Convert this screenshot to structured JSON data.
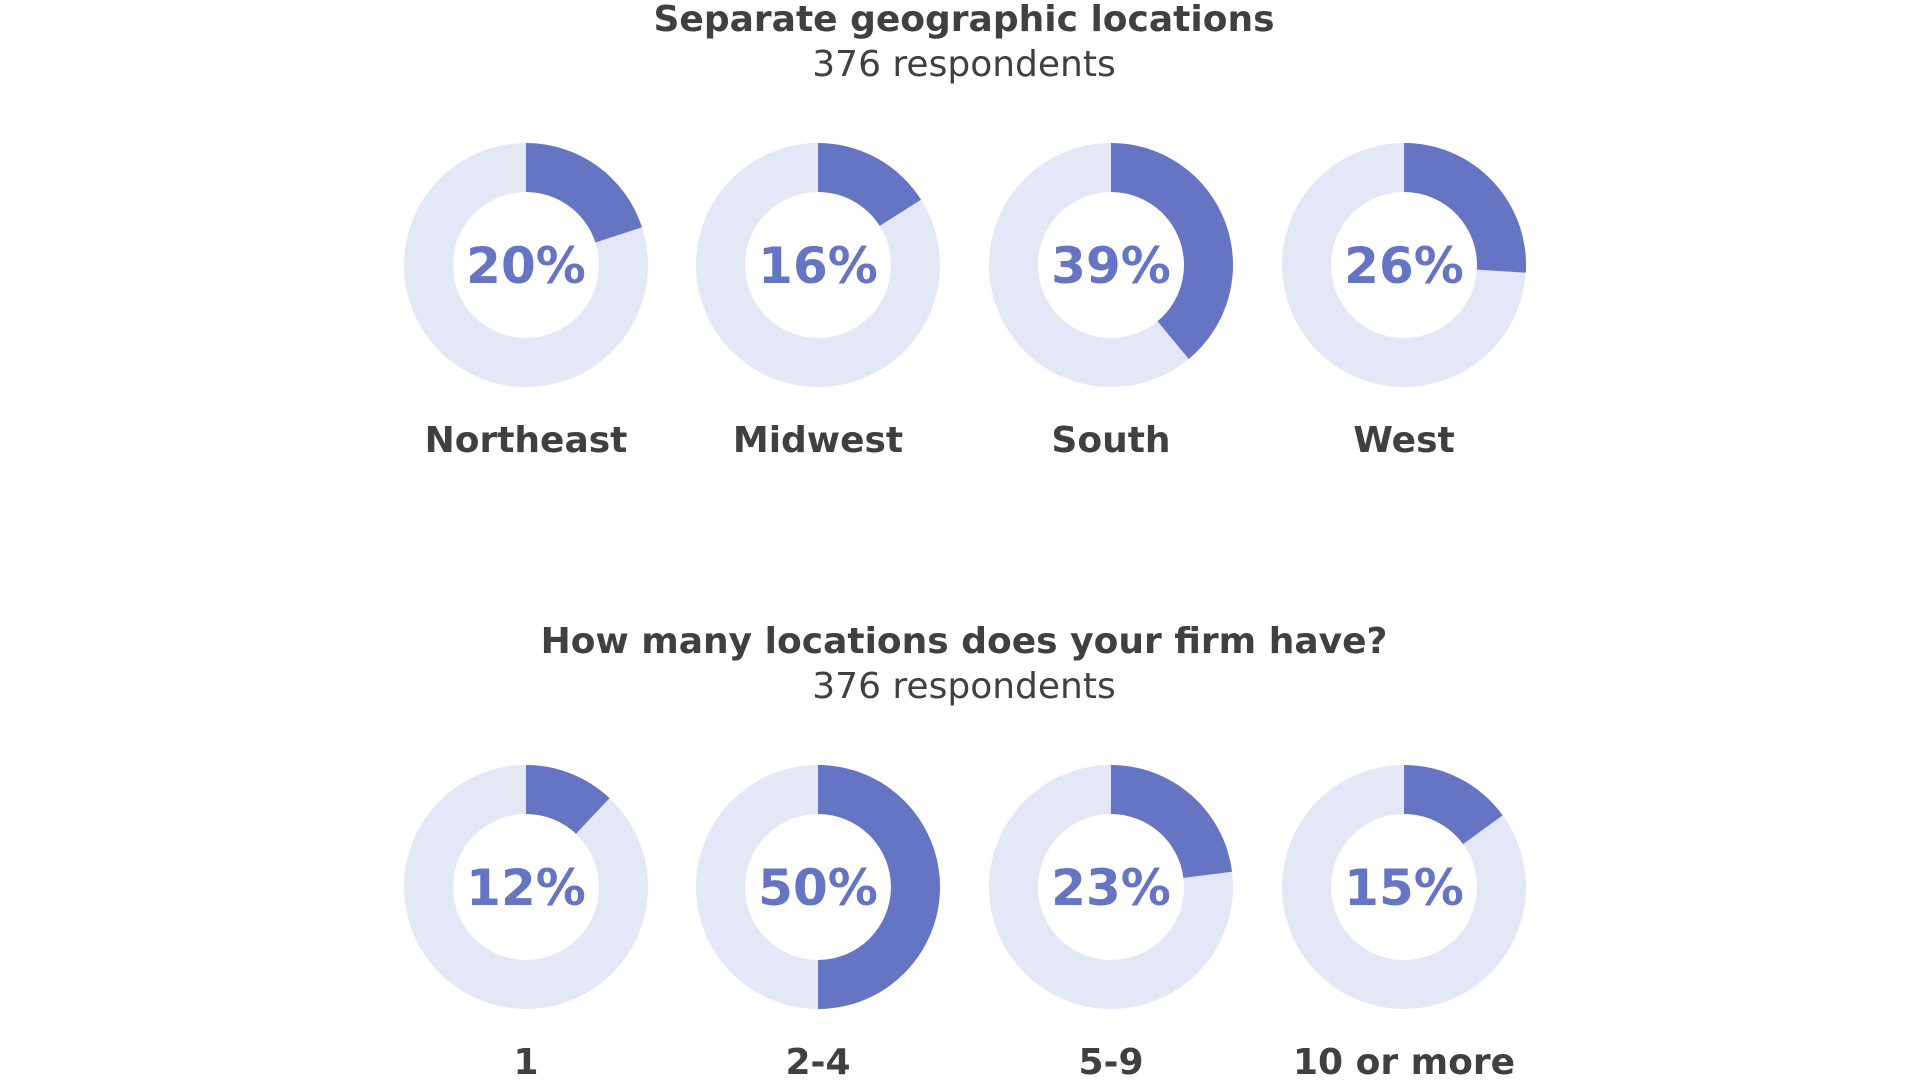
{
  "colors": {
    "accent": "#6674c4",
    "track": "#e4e7f6",
    "text": "#404040"
  },
  "chart_data": [
    {
      "type": "pie",
      "title": "Separate geographic locations",
      "subtitle": "376 respondents",
      "categories": [
        "Northeast",
        "Midwest",
        "South",
        "West"
      ],
      "values": [
        20,
        16,
        39,
        26
      ],
      "value_labels": [
        "20%",
        "16%",
        "39%",
        "26%"
      ]
    },
    {
      "type": "pie",
      "title": "How many locations does your firm have?",
      "subtitle": "376 respondents",
      "categories": [
        "1",
        "2-4",
        "5-9",
        "10 or more"
      ],
      "values": [
        12,
        50,
        23,
        15
      ],
      "value_labels": [
        "12%",
        "50%",
        "23%",
        "15%"
      ]
    }
  ]
}
